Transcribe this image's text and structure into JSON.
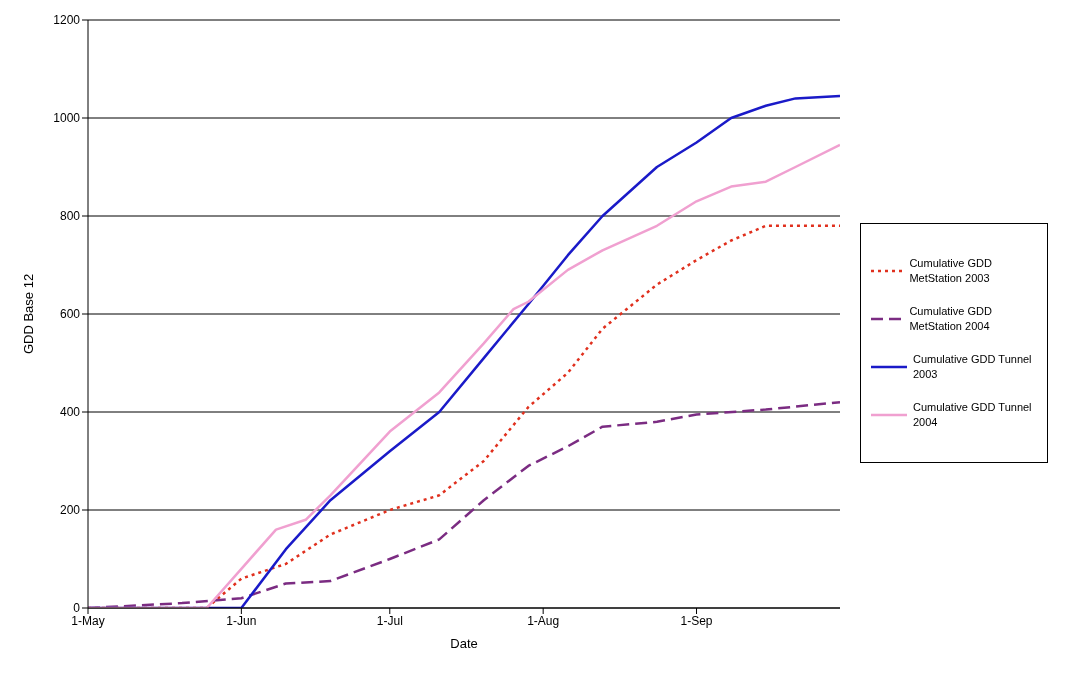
{
  "chart_data": {
    "type": "line",
    "xlabel": "Date",
    "ylabel": "GDD Base 12",
    "xlim": [
      "--05-01",
      "--09-30"
    ],
    "xticks": [
      {
        "value": "--05-01",
        "label": "1-May"
      },
      {
        "value": "--06-01",
        "label": "1-Jun"
      },
      {
        "value": "--07-01",
        "label": "1-Jul"
      },
      {
        "value": "--08-01",
        "label": "1-Aug"
      },
      {
        "value": "--09-01",
        "label": "1-Sep"
      }
    ],
    "ylim": [
      0,
      1200
    ],
    "yticks": [
      0,
      200,
      400,
      600,
      800,
      1000,
      1200
    ],
    "grid": "y",
    "legend": "right",
    "marker": "none",
    "series": [
      {
        "name": "Cumulative GDD MetStation 2003",
        "color": "#e0301e",
        "line_style": "dotted",
        "x": [
          "--05-01",
          "--05-25",
          "--06-01",
          "--06-10",
          "--06-19",
          "--07-01",
          "--07-11",
          "--07-20",
          "--07-29",
          "--08-06",
          "--08-13",
          "--08-24",
          "--09-01",
          "--09-08",
          "--09-15",
          "--09-30"
        ],
        "values": [
          0,
          0,
          60,
          90,
          150,
          200,
          230,
          300,
          410,
          480,
          570,
          660,
          710,
          750,
          780,
          780
        ]
      },
      {
        "name": "Cumulative GDD MetStation 2004",
        "color": "#7b2c82",
        "line_style": "dashed",
        "x": [
          "--05-01",
          "--05-20",
          "--06-01",
          "--06-10",
          "--06-19",
          "--07-01",
          "--07-11",
          "--07-20",
          "--07-29",
          "--08-06",
          "--08-13",
          "--08-24",
          "--09-01",
          "--09-15",
          "--09-30"
        ],
        "values": [
          0,
          10,
          20,
          50,
          55,
          100,
          140,
          220,
          290,
          330,
          370,
          380,
          395,
          405,
          420
        ]
      },
      {
        "name": "Cumulative GDD Tunnel 2003",
        "color": "#1a1ac8",
        "line_style": "solid",
        "x": [
          "--05-01",
          "--06-01",
          "--06-10",
          "--06-19",
          "--07-01",
          "--07-11",
          "--07-20",
          "--07-29",
          "--08-06",
          "--08-13",
          "--08-24",
          "--09-01",
          "--09-08",
          "--09-15",
          "--09-21",
          "--09-30"
        ],
        "values": [
          0,
          0,
          120,
          220,
          320,
          400,
          510,
          620,
          720,
          800,
          900,
          950,
          1000,
          1025,
          1040,
          1045
        ]
      },
      {
        "name": "Cumulative GDD Tunnel 2004",
        "color": "#f0a0d0",
        "line_style": "solid",
        "x": [
          "--05-01",
          "--05-25",
          "--06-01",
          "--06-08",
          "--06-14",
          "--06-19",
          "--07-01",
          "--07-11",
          "--07-20",
          "--07-26",
          "--07-29",
          "--08-06",
          "--08-13",
          "--08-24",
          "--09-01",
          "--09-08",
          "--09-15",
          "--09-21",
          "--09-30"
        ],
        "values": [
          0,
          0,
          80,
          160,
          180,
          230,
          360,
          440,
          540,
          610,
          625,
          690,
          730,
          780,
          830,
          860,
          870,
          900,
          945
        ]
      }
    ]
  }
}
